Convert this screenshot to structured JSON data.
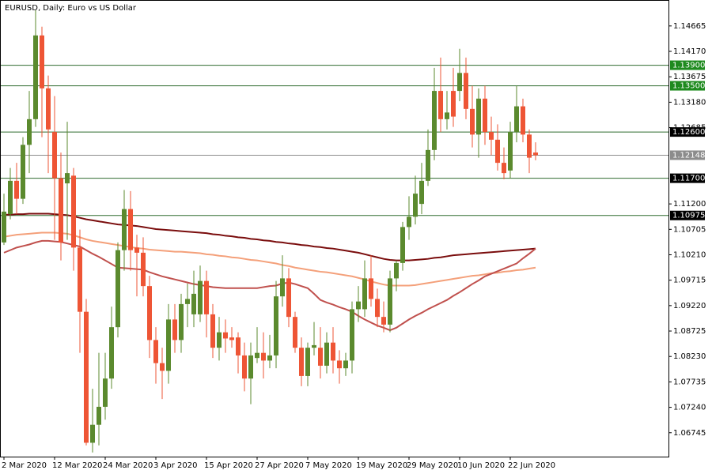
{
  "chart_data": {
    "type": "candlestick",
    "title": "EURUSD, Daily:  Euro vs US Dollar",
    "categories": [
      "2 Mar 2020",
      null,
      null,
      null,
      null,
      null,
      null,
      null,
      "12 Mar 2020",
      null,
      null,
      null,
      null,
      null,
      null,
      null,
      "24 Mar 2020",
      null,
      null,
      null,
      null,
      null,
      null,
      null,
      "3 Apr 2020",
      null,
      null,
      null,
      null,
      null,
      null,
      null,
      "15 Apr 2020",
      null,
      null,
      null,
      null,
      null,
      null,
      null,
      "27 Apr 2020",
      null,
      null,
      null,
      null,
      null,
      null,
      null,
      "7 May 2020",
      null,
      null,
      null,
      null,
      null,
      null,
      null,
      "19 May 2020",
      null,
      null,
      null,
      null,
      null,
      null,
      null,
      "29 May 2020",
      null,
      null,
      null,
      null,
      null,
      null,
      null,
      "10 Jun 2020",
      null,
      null,
      null,
      null,
      null,
      null,
      null,
      "22 Jun 2020",
      null,
      null,
      null,
      null
    ],
    "open": [
      1.1045,
      1.11,
      1.1165,
      1.113,
      1.1235,
      1.1285,
      1.1448,
      1.1345,
      1.126,
      1.117,
      1.116,
      1.1175,
      1.1035,
      1.091,
      1.0655,
      1.069,
      1.0725,
      1.078,
      1.088,
      1.103,
      1.111,
      1.1035,
      1.1025,
      1.096,
      1.0855,
      1.081,
      1.0795,
      1.0895,
      1.0855,
      1.0925,
      1.0905,
      1.0905,
      1.097,
      1.0905,
      1.084,
      1.087,
      1.086,
      1.086,
      1.0825,
      1.078,
      1.082,
      1.083,
      1.0815,
      1.0825,
      1.094,
      1.0975,
      1.09,
      1.084,
      1.0785,
      1.084,
      1.084,
      1.0805,
      1.085,
      1.0815,
      1.08,
      1.0815,
      1.0915,
      1.0915,
      1.0975,
      1.0935,
      1.09,
      1.0885,
      1.0975,
      1.1005,
      1.1075,
      1.1095,
      1.112,
      1.1165,
      1.1225,
      1.134,
      1.1285,
      1.134,
      1.134,
      1.1375,
      1.1305,
      1.1255,
      1.1325,
      1.126,
      1.1245,
      1.12,
      1.1185,
      1.126,
      1.131,
      1.1255,
      1.122
    ],
    "high": [
      1.114,
      1.119,
      1.12,
      1.125,
      1.134,
      1.1497,
      1.1465,
      1.137,
      1.133,
      1.122,
      1.128,
      1.119,
      1.107,
      1.0935,
      1.076,
      1.083,
      1.083,
      1.092,
      1.1045,
      1.1147,
      1.1145,
      1.106,
      1.1055,
      1.098,
      1.088,
      1.084,
      1.0925,
      1.0925,
      1.0945,
      1.0965,
      1.099,
      1.1,
      1.099,
      1.0925,
      1.09,
      1.0895,
      1.088,
      1.087,
      1.085,
      1.085,
      1.088,
      1.087,
      1.0865,
      1.097,
      1.102,
      1.0995,
      1.091,
      1.086,
      1.085,
      1.089,
      1.088,
      1.087,
      1.088,
      1.0835,
      1.083,
      1.093,
      1.096,
      1.101,
      1.102,
      1.0955,
      1.093,
      1.099,
      1.101,
      1.1085,
      1.1135,
      1.1175,
      1.12,
      1.1265,
      1.1385,
      1.1405,
      1.134,
      1.1385,
      1.1422,
      1.1405,
      1.135,
      1.1345,
      1.135,
      1.129,
      1.1275,
      1.123,
      1.128,
      1.135,
      1.1325,
      1.1265,
      1.124
    ],
    "low": [
      1.104,
      1.109,
      1.11,
      1.112,
      1.118,
      1.127,
      1.125,
      1.118,
      1.105,
      1.101,
      1.105,
      1.099,
      1.083,
      1.065,
      1.0636,
      1.065,
      1.07,
      1.076,
      1.086,
      1.099,
      1.099,
      1.094,
      1.094,
      1.082,
      1.077,
      1.074,
      1.077,
      1.083,
      1.083,
      1.088,
      1.088,
      1.089,
      1.086,
      1.082,
      1.0815,
      1.083,
      1.084,
      1.079,
      1.0755,
      1.073,
      1.081,
      1.078,
      1.08,
      1.08,
      1.092,
      1.088,
      1.083,
      1.0765,
      1.0765,
      1.0825,
      1.078,
      1.079,
      1.079,
      1.077,
      1.0785,
      1.079,
      1.089,
      1.09,
      1.092,
      1.088,
      1.087,
      1.087,
      1.095,
      1.099,
      1.105,
      1.108,
      1.11,
      1.1155,
      1.1205,
      1.126,
      1.1265,
      1.127,
      1.132,
      1.1285,
      1.123,
      1.121,
      1.1235,
      1.1215,
      1.1185,
      1.1168,
      1.117,
      1.124,
      1.124,
      1.118,
      1.1205
    ],
    "close": [
      1.1105,
      1.1165,
      1.113,
      1.1235,
      1.1285,
      1.1448,
      1.1345,
      1.1265,
      1.117,
      1.1045,
      1.118,
      1.1035,
      1.091,
      1.0655,
      1.069,
      1.0725,
      1.078,
      1.088,
      1.103,
      1.111,
      1.103,
      1.1025,
      1.096,
      1.0855,
      1.081,
      1.0795,
      1.0895,
      1.0855,
      1.0925,
      1.0935,
      1.0945,
      1.097,
      1.0905,
      1.084,
      1.087,
      1.0858,
      1.0855,
      1.0825,
      1.078,
      1.0825,
      1.083,
      1.0815,
      1.0825,
      1.094,
      1.0975,
      1.09,
      1.084,
      1.0785,
      1.084,
      1.0845,
      1.0805,
      1.085,
      1.0815,
      1.08,
      1.0815,
      1.0915,
      1.093,
      1.0975,
      1.0935,
      1.09,
      1.0885,
      1.0975,
      1.1005,
      1.1075,
      1.1095,
      1.114,
      1.1165,
      1.1225,
      1.134,
      1.1285,
      1.1298,
      1.129,
      1.1375,
      1.1305,
      1.1255,
      1.1325,
      1.126,
      1.1245,
      1.12,
      1.118,
      1.126,
      1.131,
      1.1255,
      1.121,
      1.12148
    ],
    "up_color": "#5b8a2e",
    "down_color": "#ee5535",
    "lines": [
      {
        "color": "#7a0d0d",
        "values": [
          1.1099,
          1.1099,
          1.11,
          1.11,
          1.1101,
          1.1101,
          1.1101,
          1.1101,
          1.11,
          1.1099,
          1.1098,
          1.1096,
          1.1093,
          1.109,
          1.1088,
          1.1086,
          1.1084,
          1.1082,
          1.108,
          1.1079,
          1.1078,
          1.1077,
          1.1075,
          1.1073,
          1.1071,
          1.107,
          1.1069,
          1.1068,
          1.1067,
          1.1066,
          1.1065,
          1.1064,
          1.1063,
          1.1061,
          1.106,
          1.1058,
          1.1057,
          1.1055,
          1.1054,
          1.1052,
          1.1051,
          1.1049,
          1.1048,
          1.1046,
          1.1045,
          1.1043,
          1.1042,
          1.104,
          1.1039,
          1.1037,
          1.1036,
          1.1034,
          1.1033,
          1.1031,
          1.1029,
          1.1027,
          1.1025,
          1.1022,
          1.1019,
          1.1016,
          1.1013,
          1.1011,
          1.101,
          1.101,
          1.101,
          1.1011,
          1.1012,
          1.1013,
          1.1015,
          1.1016,
          1.1018,
          1.102,
          1.1021,
          1.1022,
          1.1023,
          1.1024,
          1.1025,
          1.1026,
          1.1027,
          1.1028,
          1.1029,
          1.103,
          1.1031,
          1.1032,
          1.1033
        ]
      },
      {
        "color": "#f4a07a",
        "values": [
          1.1056,
          1.1058,
          1.106,
          1.1061,
          1.1062,
          1.1063,
          1.1064,
          1.1064,
          1.1064,
          1.1063,
          1.1062,
          1.1059,
          1.1055,
          1.1051,
          1.1048,
          1.1046,
          1.1044,
          1.1042,
          1.104,
          1.1038,
          1.1036,
          1.1034,
          1.1033,
          1.1031,
          1.103,
          1.1029,
          1.1028,
          1.1027,
          1.1027,
          1.1026,
          1.1025,
          1.1024,
          1.1022,
          1.1021,
          1.1019,
          1.1018,
          1.1016,
          1.1015,
          1.1013,
          1.1011,
          1.101,
          1.1008,
          1.1006,
          1.1004,
          1.1001,
          1.0999,
          1.0996,
          1.0994,
          1.0992,
          1.099,
          1.0988,
          1.0987,
          1.0985,
          1.0983,
          1.0981,
          1.0979,
          1.0976,
          1.0973,
          1.0969,
          1.0966,
          1.0963,
          1.0961,
          1.0961,
          1.0961,
          1.0961,
          1.0962,
          1.0964,
          1.0966,
          1.0968,
          1.097,
          1.0972,
          1.0974,
          1.0976,
          1.0978,
          1.098,
          1.0981,
          1.0983,
          1.0985,
          1.0986,
          1.0988,
          1.0989,
          1.0991,
          1.0992,
          1.0994,
          1.0996
        ]
      },
      {
        "color": "#c0504d",
        "values": [
          1.1025,
          1.103,
          1.1035,
          1.1038,
          1.1041,
          1.1045,
          1.1048,
          1.1048,
          1.1047,
          1.1046,
          1.1043,
          1.104,
          1.1037,
          1.103,
          1.1023,
          1.1017,
          1.101,
          1.1003,
          1.0996,
          1.0995,
          1.0994,
          1.0993,
          1.0992,
          1.0987,
          1.0983,
          1.0979,
          1.0976,
          1.0973,
          1.097,
          1.0967,
          1.0964,
          1.0962,
          1.096,
          1.0958,
          1.0957,
          1.0956,
          1.0956,
          1.0956,
          1.0956,
          1.0956,
          1.0956,
          1.0958,
          1.096,
          1.0961,
          1.0965,
          1.0967,
          1.0964,
          1.096,
          1.0956,
          1.0945,
          1.0933,
          1.0928,
          1.0924,
          1.0919,
          1.0915,
          1.091,
          1.0902,
          1.0895,
          1.0889,
          1.0883,
          1.0879,
          1.0874,
          1.0879,
          1.0887,
          1.0895,
          1.0902,
          1.0908,
          1.0915,
          1.0921,
          1.0927,
          1.0933,
          1.0941,
          1.0948,
          1.0956,
          1.0964,
          1.0971,
          1.0979,
          1.0984,
          1.0989,
          1.0994,
          1.0999,
          1.1004,
          1.1014,
          1.1023,
          1.1033
        ]
      }
    ],
    "levels": [
      {
        "value": 1.139,
        "label": "1.13900",
        "color": "#1e8a1e"
      },
      {
        "value": 1.135,
        "label": "1.13500",
        "color": "#1e8a1e"
      },
      {
        "value": 1.126,
        "label": "1.12600",
        "color": "#000000"
      },
      {
        "value": 1.12148,
        "label": "1.12148",
        "color": "#8c8c8c"
      },
      {
        "value": 1.117,
        "label": "1.11700",
        "color": "#000000"
      },
      {
        "value": 1.10975,
        "label": "1.10975",
        "color": "#000000"
      }
    ],
    "ylim": [
      1.0628,
      1.1517
    ],
    "yticks": [
      1.14665,
      {
        "value": 1.1417,
        "label": "1.14170"
      },
      1.13675,
      {
        "value": 1.1318,
        "label": "1.13180"
      },
      1.12685,
      {
        "value": 1.112,
        "label": "1.11200"
      },
      1.10705,
      {
        "value": 1.1021,
        "label": "1.10210"
      },
      1.09715,
      {
        "value": 1.0922,
        "label": "1.09220"
      },
      1.08725,
      {
        "value": 1.0823,
        "label": "1.08230"
      },
      1.07735,
      {
        "value": 1.0724,
        "label": "1.07240"
      },
      1.06745
    ],
    "grid": false
  }
}
